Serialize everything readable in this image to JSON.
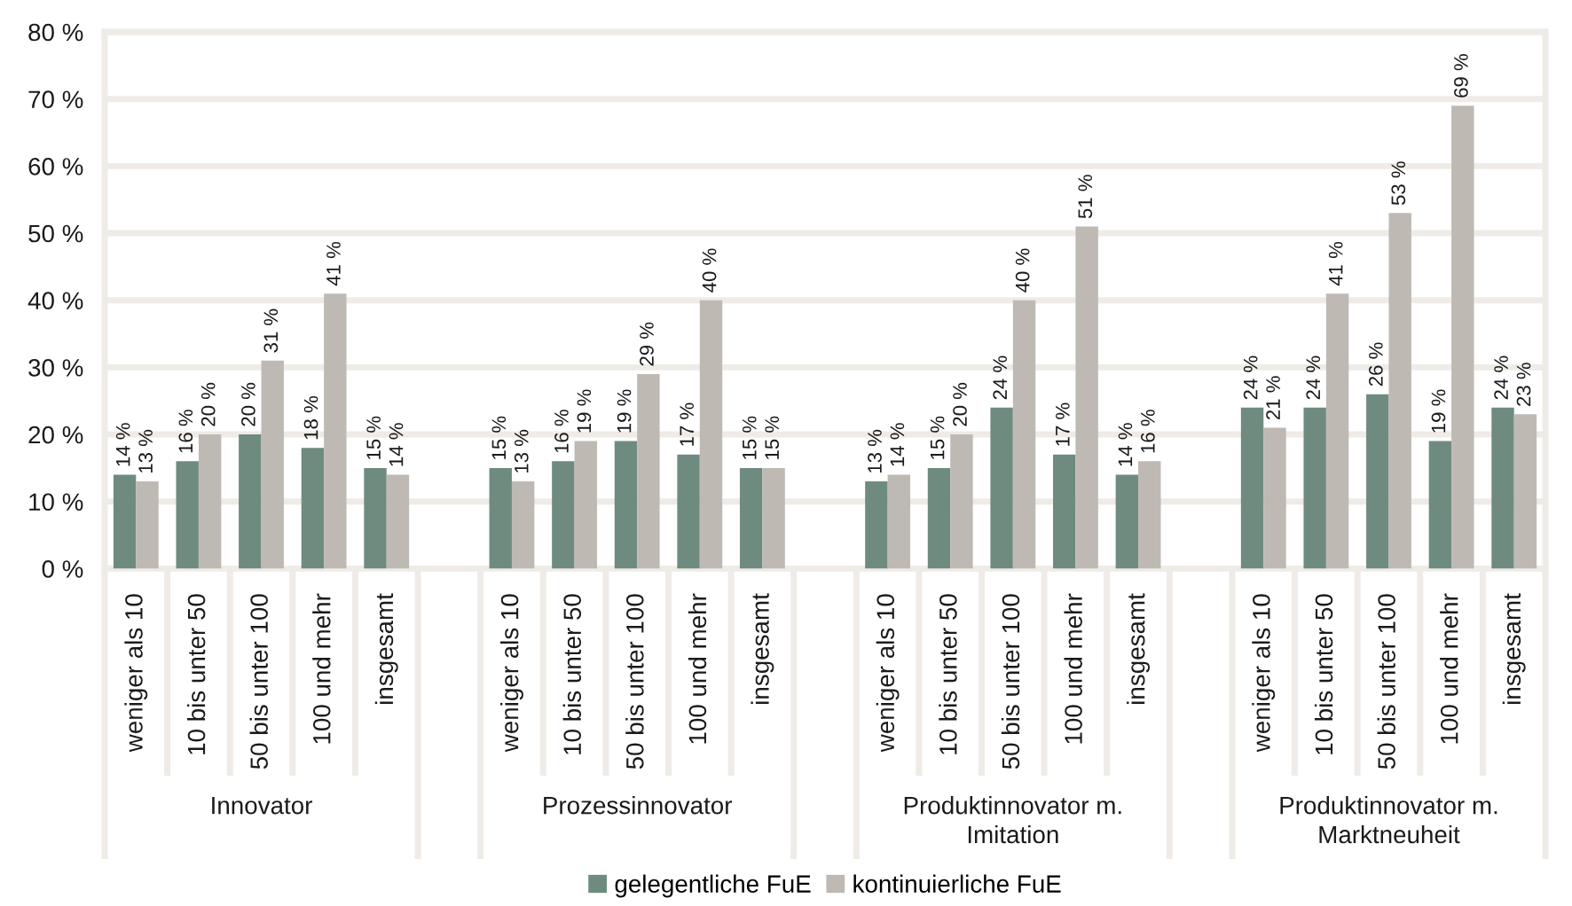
{
  "chart_data": {
    "type": "bar",
    "categories": [
      "weniger als 10",
      "10 bis unter 50",
      "50 bis unter 100",
      "100 und mehr",
      "insgesamt",
      null,
      "weniger als 10",
      "10 bis unter 50",
      "50 bis unter 100",
      "100 und mehr",
      "insgesamt",
      null,
      "weniger als 10",
      "10 bis unter 50",
      "50 bis unter 100",
      "100 und mehr",
      "insgesamt",
      null,
      "weniger als 10",
      "10 bis unter 50",
      "50 bis unter 100",
      "100 und mehr",
      "insgesamt"
    ],
    "series": [
      {
        "name": "gelegentliche FuE",
        "color": "#6f8b80",
        "values": [
          14,
          16,
          20,
          18,
          15,
          null,
          15,
          16,
          19,
          17,
          15,
          null,
          13,
          15,
          24,
          17,
          14,
          null,
          24,
          24,
          26,
          19,
          24
        ],
        "value_labels": [
          "14 %",
          "16 %",
          "20 %",
          "18 %",
          "15 %",
          null,
          "15 %",
          "16 %",
          "19 %",
          "17 %",
          "15 %",
          null,
          "13 %",
          "15 %",
          "24 %",
          "17 %",
          "14 %",
          null,
          "24 %",
          "24 %",
          "26 %",
          "19 %",
          "24 %"
        ]
      },
      {
        "name": "kontinuierliche FuE",
        "color": "#bfb9b4",
        "values": [
          13,
          20,
          31,
          41,
          14,
          null,
          13,
          19,
          29,
          40,
          15,
          null,
          14,
          20,
          40,
          51,
          16,
          null,
          21,
          41,
          53,
          69,
          23
        ],
        "value_labels": [
          "13 %",
          "20 %",
          "31 %",
          "41 %",
          "14 %",
          null,
          "13 %",
          "19 %",
          "29 %",
          "40 %",
          "15 %",
          null,
          "14 %",
          "20 %",
          "40 %",
          "51 %",
          "16 %",
          null,
          "21 %",
          "41 %",
          "53 %",
          "69 %",
          "23 %"
        ]
      }
    ],
    "ylim": [
      0,
      80
    ],
    "yticks": [
      {
        "value": 0,
        "label": "0 %"
      },
      {
        "value": 10,
        "label": "10 %"
      },
      {
        "value": 20,
        "label": "20 %"
      },
      {
        "value": 30,
        "label": "30 %"
      },
      {
        "value": 40,
        "label": "40 %"
      },
      {
        "value": 50,
        "label": "50 %"
      },
      {
        "value": 60,
        "label": "60 %"
      },
      {
        "value": 70,
        "label": "70 %"
      },
      {
        "value": 80,
        "label": "80 %"
      }
    ],
    "grid": "y",
    "legend": "bottom",
    "annotations": [
      "Innovator",
      "Prozessinnovator",
      "Produktinnovator m. Imitation",
      "Produktinnovator m. Marktneuheit"
    ]
  }
}
